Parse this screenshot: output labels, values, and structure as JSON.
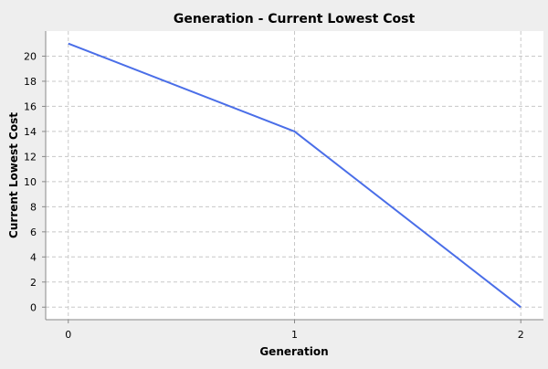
{
  "chart_data": {
    "type": "line",
    "title": "Generation - Current Lowest Cost",
    "xlabel": "Generation",
    "ylabel": "Current Lowest Cost",
    "x": [
      0,
      1,
      2
    ],
    "series": [
      {
        "values": [
          21,
          14,
          0
        ]
      }
    ],
    "xlim": [
      -0.1,
      2.1
    ],
    "ylim": [
      -1,
      22
    ],
    "x_ticks": [
      0,
      1,
      2
    ],
    "y_ticks": [
      0,
      2,
      4,
      6,
      8,
      10,
      12,
      14,
      16,
      18,
      20
    ],
    "grid": true,
    "legend": "none",
    "colors": {
      "background": "#eeeeee",
      "plot_background": "#ffffff",
      "line": "#4a6ee8",
      "grid": "#c8c8c8",
      "axis": "#888888",
      "text": "#000000"
    }
  }
}
